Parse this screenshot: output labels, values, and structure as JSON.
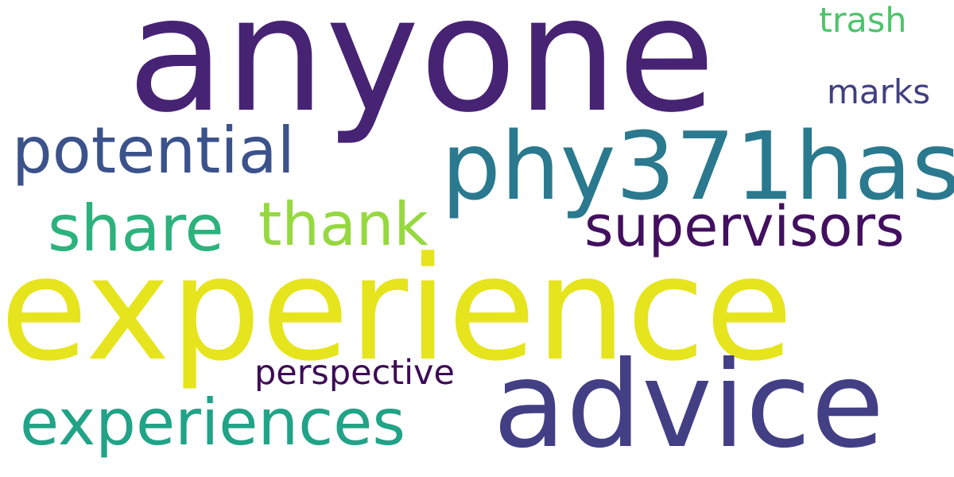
{
  "cloud": {
    "background": "#ffffff",
    "words": {
      "anyone": {
        "text": "anyone",
        "color": "#472374"
      },
      "experience": {
        "text": "experience",
        "color": "#e6e41c"
      },
      "advice": {
        "text": "advice",
        "color": "#433f85"
      },
      "phy371has": {
        "text": "phy371has",
        "color": "#2a798e"
      },
      "potential": {
        "text": "potential",
        "color": "#3b528b"
      },
      "experiences": {
        "text": "experiences",
        "color": "#20a386"
      },
      "supervisors": {
        "text": "supervisors",
        "color": "#42105f"
      },
      "share": {
        "text": "share",
        "color": "#2db27d"
      },
      "thank": {
        "text": "thank",
        "color": "#96d83f"
      },
      "perspective": {
        "text": "perspective",
        "color": "#3e0b56"
      },
      "marks": {
        "text": "marks",
        "color": "#413f81"
      },
      "trash": {
        "text": "trash",
        "color": "#4ec36b"
      }
    }
  }
}
